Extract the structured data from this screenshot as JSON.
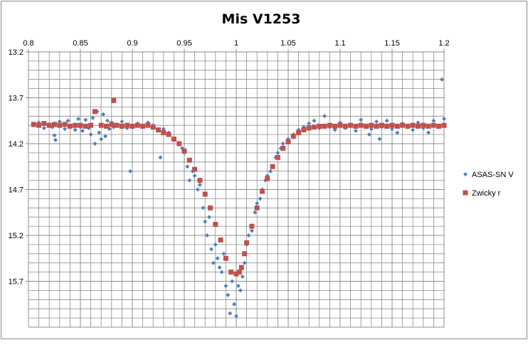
{
  "chart_data": {
    "type": "scatter",
    "title": "Mis V1253",
    "xlabel": "",
    "ylabel": "",
    "xlim": [
      0.8,
      1.2
    ],
    "ylim": [
      13.2,
      16.2
    ],
    "y_reversed": true,
    "x_axis_position": "top",
    "x_ticks": [
      "0.8",
      "0.85",
      "0.9",
      "0.95",
      "1",
      "1.05",
      "1.1",
      "1.15",
      "1.2"
    ],
    "y_ticks": [
      "13.2",
      "13.7",
      "14.2",
      "14.7",
      "15.2",
      "15.7"
    ],
    "grid": true,
    "legend_position": "right",
    "series": [
      {
        "name": "ASAS-SN V",
        "marker": "diamond",
        "color": "#4f81bd",
        "points": [
          [
            0.805,
            14.0
          ],
          [
            0.81,
            13.97
          ],
          [
            0.815,
            14.03
          ],
          [
            0.82,
            13.99
          ],
          [
            0.823,
            14.02
          ],
          [
            0.825,
            14.11
          ],
          [
            0.826,
            14.16
          ],
          [
            0.83,
            13.96
          ],
          [
            0.835,
            14.04
          ],
          [
            0.838,
            13.95
          ],
          [
            0.84,
            14.01
          ],
          [
            0.845,
            14.05
          ],
          [
            0.848,
            13.93
          ],
          [
            0.85,
            14.02
          ],
          [
            0.852,
            14.06
          ],
          [
            0.855,
            13.94
          ],
          [
            0.858,
            14.03
          ],
          [
            0.86,
            14.1
          ],
          [
            0.862,
            13.92
          ],
          [
            0.864,
            14.2
          ],
          [
            0.866,
            13.85
          ],
          [
            0.868,
            14.08
          ],
          [
            0.87,
            14.15
          ],
          [
            0.872,
            13.88
          ],
          [
            0.874,
            14.12
          ],
          [
            0.876,
            13.95
          ],
          [
            0.878,
            14.04
          ],
          [
            0.88,
            13.97
          ],
          [
            0.882,
            14.02
          ],
          [
            0.885,
            14.0
          ],
          [
            0.89,
            13.96
          ],
          [
            0.895,
            14.03
          ],
          [
            0.898,
            14.5
          ],
          [
            0.9,
            14.02
          ],
          [
            0.905,
            13.98
          ],
          [
            0.91,
            14.01
          ],
          [
            0.915,
            13.97
          ],
          [
            0.92,
            14.0
          ],
          [
            0.925,
            14.05
          ],
          [
            0.927,
            14.35
          ],
          [
            0.93,
            14.04
          ],
          [
            0.935,
            14.08
          ],
          [
            0.94,
            14.15
          ],
          [
            0.945,
            14.2
          ],
          [
            0.948,
            14.25
          ],
          [
            0.95,
            14.3
          ],
          [
            0.953,
            14.45
          ],
          [
            0.955,
            14.6
          ],
          [
            0.958,
            14.5
          ],
          [
            0.96,
            14.55
          ],
          [
            0.963,
            14.7
          ],
          [
            0.965,
            14.65
          ],
          [
            0.968,
            14.9
          ],
          [
            0.97,
            15.05
          ],
          [
            0.972,
            15.2
          ],
          [
            0.974,
            15.0
          ],
          [
            0.976,
            15.35
          ],
          [
            0.978,
            15.5
          ],
          [
            0.98,
            15.3
          ],
          [
            0.982,
            15.45
          ],
          [
            0.984,
            15.55
          ],
          [
            0.986,
            15.6
          ],
          [
            0.988,
            15.4
          ],
          [
            0.99,
            15.75
          ],
          [
            0.992,
            15.85
          ],
          [
            0.994,
            16.05
          ],
          [
            0.996,
            15.7
          ],
          [
            0.998,
            15.95
          ],
          [
            1.0,
            16.08
          ],
          [
            1.002,
            15.75
          ],
          [
            1.004,
            15.8
          ],
          [
            1.006,
            15.65
          ],
          [
            1.008,
            15.5
          ],
          [
            1.01,
            15.3
          ],
          [
            1.012,
            15.2
          ],
          [
            1.015,
            15.15
          ],
          [
            1.018,
            14.95
          ],
          [
            1.02,
            14.85
          ],
          [
            1.023,
            14.8
          ],
          [
            1.025,
            14.7
          ],
          [
            1.028,
            14.6
          ],
          [
            1.03,
            14.55
          ],
          [
            1.033,
            14.5
          ],
          [
            1.035,
            14.45
          ],
          [
            1.038,
            14.35
          ],
          [
            1.04,
            14.3
          ],
          [
            1.043,
            14.25
          ],
          [
            1.045,
            14.2
          ],
          [
            1.05,
            14.15
          ],
          [
            1.055,
            14.1
          ],
          [
            1.06,
            14.05
          ],
          [
            1.065,
            14.02
          ],
          [
            1.07,
            13.98
          ],
          [
            1.075,
            13.95
          ],
          [
            1.08,
            14.03
          ],
          [
            1.085,
            13.9
          ],
          [
            1.09,
            14.02
          ],
          [
            1.095,
            14.05
          ],
          [
            1.1,
            13.97
          ],
          [
            1.105,
            14.03
          ],
          [
            1.11,
            14.0
          ],
          [
            1.115,
            14.06
          ],
          [
            1.12,
            13.94
          ],
          [
            1.125,
            14.02
          ],
          [
            1.128,
            14.1
          ],
          [
            1.13,
            14.04
          ],
          [
            1.135,
            13.96
          ],
          [
            1.138,
            14.15
          ],
          [
            1.14,
            14.02
          ],
          [
            1.145,
            13.95
          ],
          [
            1.15,
            14.04
          ],
          [
            1.155,
            14.08
          ],
          [
            1.16,
            13.98
          ],
          [
            1.165,
            14.02
          ],
          [
            1.17,
            14.05
          ],
          [
            1.175,
            13.97
          ],
          [
            1.18,
            14.03
          ],
          [
            1.185,
            14.08
          ],
          [
            1.19,
            13.95
          ],
          [
            1.195,
            14.02
          ],
          [
            1.198,
            13.5
          ],
          [
            1.2,
            13.93
          ]
        ]
      },
      {
        "name": "Zwicky r",
        "marker": "square",
        "color": "#c0504d",
        "points": [
          [
            0.805,
            13.99
          ],
          [
            0.81,
            14.0
          ],
          [
            0.815,
            13.98
          ],
          [
            0.82,
            14.0
          ],
          [
            0.825,
            13.99
          ],
          [
            0.83,
            14.0
          ],
          [
            0.835,
            13.99
          ],
          [
            0.84,
            14.01
          ],
          [
            0.845,
            14.0
          ],
          [
            0.85,
            14.0
          ],
          [
            0.855,
            14.01
          ],
          [
            0.86,
            14.0
          ],
          [
            0.864,
            13.85
          ],
          [
            0.87,
            14.0
          ],
          [
            0.875,
            14.01
          ],
          [
            0.88,
            13.99
          ],
          [
            0.882,
            13.73
          ],
          [
            0.885,
            14.0
          ],
          [
            0.89,
            14.01
          ],
          [
            0.895,
            14.0
          ],
          [
            0.9,
            14.01
          ],
          [
            0.905,
            14.0
          ],
          [
            0.91,
            14.01
          ],
          [
            0.915,
            14.0
          ],
          [
            0.92,
            14.02
          ],
          [
            0.925,
            14.05
          ],
          [
            0.93,
            14.08
          ],
          [
            0.935,
            14.1
          ],
          [
            0.94,
            14.15
          ],
          [
            0.945,
            14.2
          ],
          [
            0.95,
            14.28
          ],
          [
            0.955,
            14.38
          ],
          [
            0.96,
            14.48
          ],
          [
            0.965,
            14.6
          ],
          [
            0.97,
            14.75
          ],
          [
            0.975,
            14.9
          ],
          [
            0.98,
            15.08
          ],
          [
            0.985,
            15.25
          ],
          [
            0.99,
            15.45
          ],
          [
            0.995,
            15.6
          ],
          [
            1.0,
            15.62
          ],
          [
            1.003,
            15.6
          ],
          [
            1.005,
            15.55
          ],
          [
            1.008,
            15.4
          ],
          [
            1.01,
            15.28
          ],
          [
            1.015,
            15.1
          ],
          [
            1.02,
            14.9
          ],
          [
            1.025,
            14.72
          ],
          [
            1.03,
            14.58
          ],
          [
            1.035,
            14.45
          ],
          [
            1.04,
            14.35
          ],
          [
            1.045,
            14.25
          ],
          [
            1.05,
            14.18
          ],
          [
            1.055,
            14.12
          ],
          [
            1.06,
            14.08
          ],
          [
            1.065,
            14.05
          ],
          [
            1.07,
            14.03
          ],
          [
            1.075,
            14.02
          ],
          [
            1.08,
            14.01
          ],
          [
            1.085,
            14.01
          ],
          [
            1.09,
            14.0
          ],
          [
            1.095,
            14.01
          ],
          [
            1.1,
            14.0
          ],
          [
            1.105,
            14.01
          ],
          [
            1.11,
            14.0
          ],
          [
            1.115,
            14.01
          ],
          [
            1.12,
            14.0
          ],
          [
            1.125,
            14.01
          ],
          [
            1.13,
            14.0
          ],
          [
            1.135,
            14.01
          ],
          [
            1.14,
            14.0
          ],
          [
            1.145,
            14.01
          ],
          [
            1.15,
            14.0
          ],
          [
            1.155,
            14.01
          ],
          [
            1.16,
            14.0
          ],
          [
            1.165,
            14.01
          ],
          [
            1.17,
            14.0
          ],
          [
            1.175,
            14.01
          ],
          [
            1.18,
            14.0
          ],
          [
            1.185,
            14.01
          ],
          [
            1.19,
            14.0
          ],
          [
            1.195,
            14.01
          ],
          [
            1.2,
            14.0
          ]
        ]
      }
    ]
  }
}
